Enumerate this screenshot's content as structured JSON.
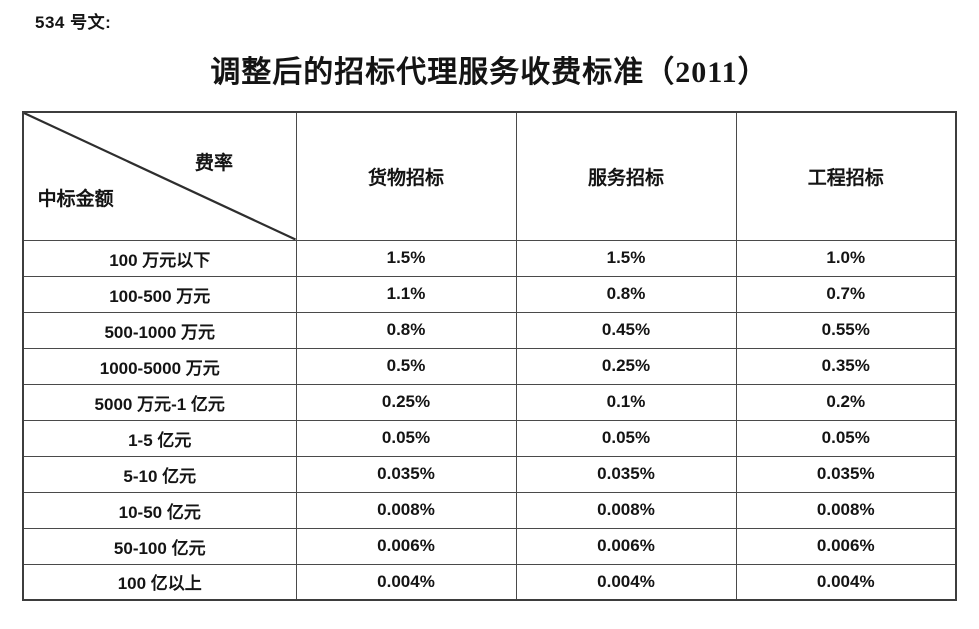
{
  "page": {
    "doc_label": "534 号文:",
    "title": "调整后的招标代理服务收费标准（2011）"
  },
  "table": {
    "corner": {
      "top_right": "费率",
      "bottom_left": "中标金额"
    },
    "columns": [
      "货物招标",
      "服务招标",
      "工程招标"
    ],
    "rows": [
      {
        "amount": "100 万元以下",
        "values": [
          "1.5%",
          "1.5%",
          "1.0%"
        ]
      },
      {
        "amount": "100-500 万元",
        "values": [
          "1.1%",
          "0.8%",
          "0.7%"
        ]
      },
      {
        "amount": "500-1000 万元",
        "values": [
          "0.8%",
          "0.45%",
          "0.55%"
        ]
      },
      {
        "amount": "1000-5000 万元",
        "values": [
          "0.5%",
          "0.25%",
          "0.35%"
        ]
      },
      {
        "amount": "5000 万元-1 亿元",
        "values": [
          "0.25%",
          "0.1%",
          "0.2%"
        ]
      },
      {
        "amount": "1-5 亿元",
        "values": [
          "0.05%",
          "0.05%",
          "0.05%"
        ]
      },
      {
        "amount": "5-10 亿元",
        "values": [
          "0.035%",
          "0.035%",
          "0.035%"
        ]
      },
      {
        "amount": "10-50 亿元",
        "values": [
          "0.008%",
          "0.008%",
          "0.008%"
        ]
      },
      {
        "amount": "50-100 亿元",
        "values": [
          "0.006%",
          "0.006%",
          "0.006%"
        ]
      },
      {
        "amount": "100 亿以上",
        "values": [
          "0.004%",
          "0.004%",
          "0.004%"
        ]
      }
    ]
  },
  "colors": {
    "text": "#141414",
    "border": "#4a4a4a",
    "background": "#ffffff"
  }
}
